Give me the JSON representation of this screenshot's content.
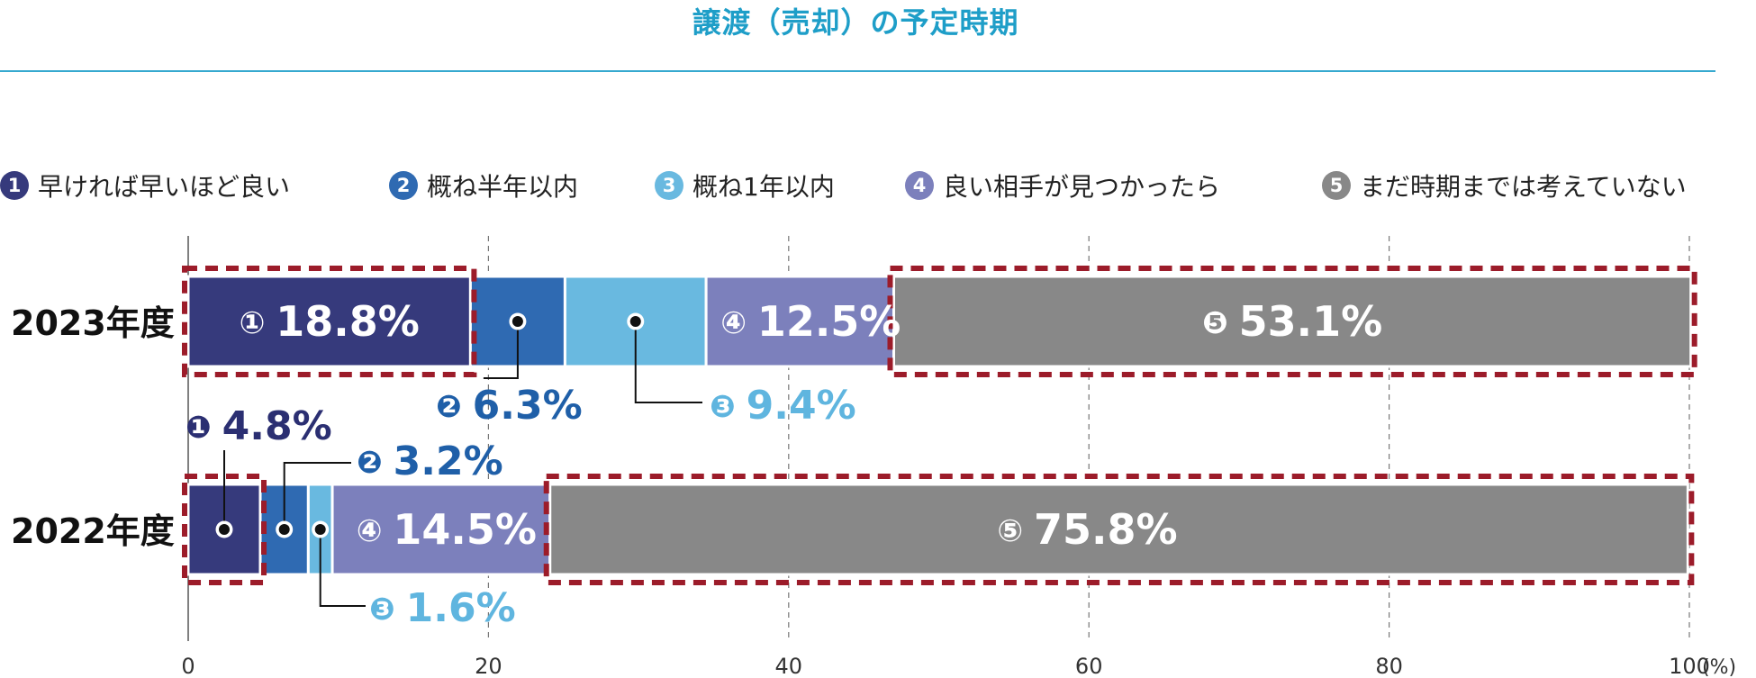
{
  "title": "譲渡（売却）の予定時期",
  "colors": {
    "title": "#1e9ec8",
    "series": [
      "#363a7c",
      "#2f6ab2",
      "#69b9e0",
      "#7c80bc",
      "#888888"
    ],
    "label": [
      "#2b2f72",
      "#1f5fa8",
      "#5fb5df",
      "#7c80bc",
      "#888888"
    ],
    "highlight": "#9c1c2a"
  },
  "legend": [
    {
      "num": "1",
      "label": "早ければ早いほど良い"
    },
    {
      "num": "2",
      "label": "概ね半年以内"
    },
    {
      "num": "3",
      "label": "概ね1年以内"
    },
    {
      "num": "4",
      "label": "良い相手が見つかったら"
    },
    {
      "num": "5",
      "label": "まだ時期までは考えていない"
    }
  ],
  "chart_data": {
    "type": "bar",
    "orientation": "horizontal",
    "stacked": true,
    "title": "譲渡（売却）の予定時期",
    "categories": [
      "2023年度",
      "2022年度"
    ],
    "series": [
      {
        "name": "早ければ早いほど良い",
        "values": [
          18.8,
          4.8
        ],
        "labels": [
          "❶18.8%",
          "❶4.8%"
        ]
      },
      {
        "name": "概ね半年以内",
        "values": [
          6.3,
          3.2
        ],
        "labels": [
          "❷6.3%",
          "❷3.2%"
        ]
      },
      {
        "name": "概ね1年以内",
        "values": [
          9.4,
          1.6
        ],
        "labels": [
          "❸9.4%",
          "❸1.6%"
        ]
      },
      {
        "name": "良い相手が見つかったら",
        "values": [
          12.5,
          14.5
        ],
        "labels": [
          "❹12.5%",
          "❹14.5%"
        ]
      },
      {
        "name": "まだ時期までは考えていない",
        "values": [
          53.1,
          75.8
        ],
        "labels": [
          "❺53.1%",
          "❺75.8%"
        ]
      }
    ],
    "highlighted": [
      [
        0,
        4
      ],
      [
        0,
        4
      ]
    ],
    "xlim": [
      0,
      100
    ],
    "x_ticks": [
      "0",
      "20",
      "40",
      "60",
      "80",
      "100"
    ],
    "x_unit": "(%)",
    "grid": "vertical dashed",
    "legend_position": "top"
  }
}
